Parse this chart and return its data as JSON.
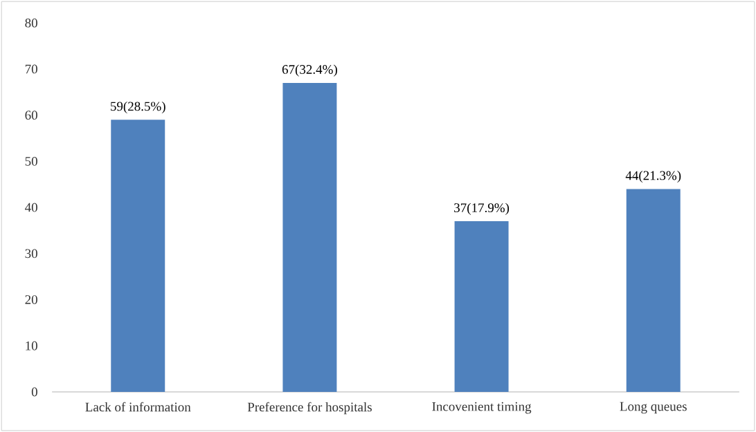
{
  "chart_data": {
    "type": "bar",
    "categories": [
      "Lack of information",
      "Preference for hospitals",
      "Incovenient timing",
      "Long queues"
    ],
    "values": [
      59,
      67,
      37,
      44
    ],
    "value_labels": [
      "59(28.5%)",
      "67(32.4%)",
      "37(17.9%)",
      "44(21.3%)"
    ],
    "color": "#4f81bd",
    "ylim": [
      0,
      80
    ],
    "yticks": [
      0,
      10,
      20,
      30,
      40,
      50,
      60,
      70,
      80
    ],
    "grid": false
  }
}
